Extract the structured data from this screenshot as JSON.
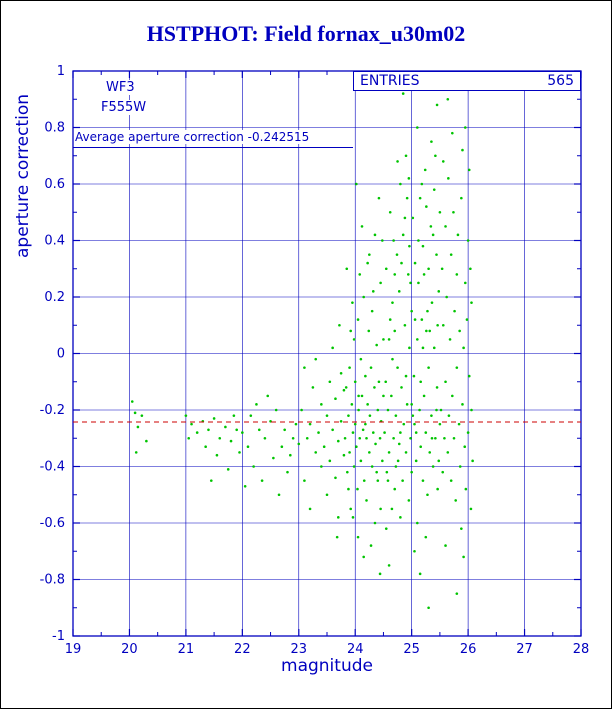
{
  "page": {
    "title": "HSTPHOT: Field fornax_u30m02"
  },
  "annotations": {
    "camera": "WF3",
    "filter": "F555W",
    "entries_label": "ENTRIES",
    "entries_value": "565",
    "avg_text": "Average aperture correction -0.242515"
  },
  "colors": {
    "axis_blue": "#0000bf",
    "point_green": "#00c400",
    "ref_red": "#cc0000"
  },
  "chart_data": {
    "type": "scatter",
    "title": "HSTPHOT: Field fornax_u30m02",
    "xlabel": "magnitude",
    "ylabel": "aperture correction",
    "xlim": [
      19,
      28
    ],
    "ylim": [
      -1,
      1
    ],
    "x_ticks": [
      19,
      20,
      21,
      22,
      23,
      24,
      25,
      26,
      27,
      28
    ],
    "y_ticks": [
      -1,
      -0.8,
      -0.6,
      -0.4,
      -0.2,
      0,
      0.2,
      0.4,
      0.6,
      0.8,
      1
    ],
    "grid": true,
    "legend": "none",
    "entries": 565,
    "reference_line": {
      "y": -0.242515,
      "label": "Average aperture correction -0.242515",
      "color": "#cc0000",
      "style": "dashed"
    },
    "series": [
      {
        "name": "aperture corrections",
        "color": "#00c400",
        "marker": "dot",
        "points": [
          [
            20.05,
            -0.17
          ],
          [
            20.1,
            -0.21
          ],
          [
            20.15,
            -0.26
          ],
          [
            20.22,
            -0.22
          ],
          [
            20.3,
            -0.31
          ],
          [
            20.12,
            -0.35
          ],
          [
            21.0,
            -0.22
          ],
          [
            21.05,
            -0.3
          ],
          [
            21.1,
            -0.25
          ],
          [
            21.2,
            -0.28
          ],
          [
            21.3,
            -0.24
          ],
          [
            21.35,
            -0.33
          ],
          [
            21.4,
            -0.27
          ],
          [
            21.5,
            -0.23
          ],
          [
            21.55,
            -0.36
          ],
          [
            21.6,
            -0.3
          ],
          [
            21.7,
            -0.26
          ],
          [
            21.75,
            -0.41
          ],
          [
            21.8,
            -0.31
          ],
          [
            21.9,
            -0.27
          ],
          [
            21.95,
            -0.35
          ],
          [
            21.45,
            -0.45
          ],
          [
            21.85,
            -0.22
          ],
          [
            22.0,
            -0.28
          ],
          [
            22.1,
            -0.33
          ],
          [
            22.15,
            -0.22
          ],
          [
            22.2,
            -0.4
          ],
          [
            22.3,
            -0.27
          ],
          [
            22.35,
            -0.45
          ],
          [
            22.4,
            -0.3
          ],
          [
            22.5,
            -0.24
          ],
          [
            22.55,
            -0.37
          ],
          [
            22.6,
            -0.2
          ],
          [
            22.7,
            -0.33
          ],
          [
            22.75,
            -0.27
          ],
          [
            22.8,
            -0.42
          ],
          [
            22.9,
            -0.3
          ],
          [
            22.95,
            -0.25
          ],
          [
            22.25,
            -0.18
          ],
          [
            22.65,
            -0.5
          ],
          [
            22.45,
            -0.15
          ],
          [
            22.85,
            -0.36
          ],
          [
            22.05,
            -0.47
          ],
          [
            23.0,
            -0.32
          ],
          [
            23.05,
            -0.2
          ],
          [
            23.1,
            -0.45
          ],
          [
            23.1,
            -0.05
          ],
          [
            23.15,
            -0.3
          ],
          [
            23.2,
            -0.25
          ],
          [
            23.2,
            -0.55
          ],
          [
            23.25,
            -0.12
          ],
          [
            23.3,
            -0.35
          ],
          [
            23.3,
            -0.02
          ],
          [
            23.35,
            -0.28
          ],
          [
            23.4,
            -0.4
          ],
          [
            23.4,
            -0.18
          ],
          [
            23.45,
            -0.33
          ],
          [
            23.5,
            -0.22
          ],
          [
            23.5,
            -0.5
          ],
          [
            23.55,
            -0.1
          ],
          [
            23.55,
            -0.38
          ],
          [
            23.6,
            -0.27
          ],
          [
            23.6,
            0.02
          ],
          [
            23.65,
            -0.44
          ],
          [
            23.65,
            -0.16
          ],
          [
            23.7,
            -0.31
          ],
          [
            23.7,
            -0.58
          ],
          [
            23.75,
            -0.24
          ],
          [
            23.75,
            -0.07
          ],
          [
            23.8,
            -0.36
          ],
          [
            23.8,
            -0.13
          ],
          [
            23.72,
            0.1
          ],
          [
            23.68,
            -0.65
          ],
          [
            23.82,
            -0.3
          ],
          [
            23.84,
            -0.12
          ],
          [
            23.86,
            -0.42
          ],
          [
            23.88,
            -0.22
          ],
          [
            23.9,
            -0.05
          ],
          [
            23.9,
            -0.35
          ],
          [
            23.92,
            -0.55
          ],
          [
            23.94,
            -0.18
          ],
          [
            23.96,
            -0.28
          ],
          [
            23.98,
            0.05
          ],
          [
            23.98,
            -0.4
          ],
          [
            24.0,
            -0.25
          ],
          [
            24.0,
            -0.1
          ],
          [
            24.02,
            -0.33
          ],
          [
            24.04,
            -0.48
          ],
          [
            24.05,
            0.12
          ],
          [
            24.06,
            -0.2
          ],
          [
            24.08,
            -0.3
          ],
          [
            24.1,
            -0.02
          ],
          [
            24.1,
            -0.38
          ],
          [
            24.12,
            -0.15
          ],
          [
            24.14,
            -0.27
          ],
          [
            24.15,
            0.2
          ],
          [
            24.16,
            -0.45
          ],
          [
            24.18,
            -0.08
          ],
          [
            24.2,
            -0.3
          ],
          [
            24.2,
            -0.52
          ],
          [
            24.22,
            -0.18
          ],
          [
            24.24,
            0.08
          ],
          [
            24.25,
            -0.35
          ],
          [
            24.26,
            -0.22
          ],
          [
            24.28,
            -0.05
          ],
          [
            24.3,
            -0.4
          ],
          [
            24.3,
            0.15
          ],
          [
            24.32,
            -0.28
          ],
          [
            24.34,
            -0.12
          ],
          [
            24.35,
            -0.6
          ],
          [
            24.36,
            -0.32
          ],
          [
            24.38,
            0.03
          ],
          [
            24.4,
            -0.2
          ],
          [
            24.4,
            -0.45
          ],
          [
            24.42,
            -0.1
          ],
          [
            24.44,
            -0.3
          ],
          [
            24.45,
            0.25
          ],
          [
            24.46,
            -0.24
          ],
          [
            24.48,
            -0.38
          ],
          [
            24.5,
            -0.15
          ],
          [
            24.5,
            0.05
          ],
          [
            23.85,
            0.3
          ],
          [
            23.95,
            0.18
          ],
          [
            24.05,
            -0.65
          ],
          [
            24.15,
            -0.72
          ],
          [
            24.25,
            0.35
          ],
          [
            24.35,
            0.42
          ],
          [
            24.45,
            -0.55
          ],
          [
            23.88,
            -0.48
          ],
          [
            24.08,
            0.28
          ],
          [
            24.28,
            -0.68
          ],
          [
            24.48,
            0.4
          ],
          [
            23.92,
            0.08
          ],
          [
            24.12,
            0.45
          ],
          [
            24.32,
            0.22
          ],
          [
            24.42,
            0.55
          ],
          [
            24.02,
            0.6
          ],
          [
            24.22,
            0.32
          ],
          [
            24.44,
            -0.78
          ],
          [
            23.96,
            -0.58
          ],
          [
            24.38,
            -0.42
          ],
          [
            24.18,
            -0.25
          ],
          [
            24.06,
            -0.15
          ],
          [
            24.52,
            -0.28
          ],
          [
            24.54,
            -0.1
          ],
          [
            24.55,
            0.3
          ],
          [
            24.56,
            -0.42
          ],
          [
            24.58,
            -0.2
          ],
          [
            24.6,
            0.05
          ],
          [
            24.6,
            -0.35
          ],
          [
            24.62,
            0.5
          ],
          [
            24.64,
            -0.15
          ],
          [
            24.65,
            -0.55
          ],
          [
            24.66,
            0.18
          ],
          [
            24.68,
            -0.3
          ],
          [
            24.7,
            0.08
          ],
          [
            24.7,
            -0.48
          ],
          [
            24.72,
            -0.22
          ],
          [
            24.74,
            0.35
          ],
          [
            24.75,
            -0.05
          ],
          [
            24.76,
            -0.38
          ],
          [
            24.78,
            0.22
          ],
          [
            24.8,
            -0.28
          ],
          [
            24.8,
            0.6
          ],
          [
            24.82,
            -0.12
          ],
          [
            24.84,
            -0.45
          ],
          [
            24.85,
            0.42
          ],
          [
            24.86,
            -0.25
          ],
          [
            24.88,
            0.1
          ],
          [
            24.9,
            -0.35
          ],
          [
            24.9,
            0.7
          ],
          [
            24.92,
            -0.18
          ],
          [
            24.94,
            0.28
          ],
          [
            24.95,
            -0.52
          ],
          [
            24.96,
            0.02
          ],
          [
            24.98,
            -0.3
          ],
          [
            25.0,
            0.15
          ],
          [
            25.0,
            -0.42
          ],
          [
            25.02,
            0.48
          ],
          [
            25.04,
            -0.08
          ],
          [
            25.05,
            -0.25
          ],
          [
            25.06,
            0.32
          ],
          [
            25.08,
            -0.38
          ],
          [
            25.1,
            0.05
          ],
          [
            25.1,
            -0.6
          ],
          [
            25.12,
            0.25
          ],
          [
            25.14,
            -0.2
          ],
          [
            25.15,
            0.55
          ],
          [
            25.16,
            -0.33
          ],
          [
            25.18,
            0.12
          ],
          [
            25.2,
            -0.45
          ],
          [
            25.2,
            0.38
          ],
          [
            25.22,
            -0.15
          ],
          [
            25.24,
            0.65
          ],
          [
            25.25,
            -0.28
          ],
          [
            25.26,
            0.08
          ],
          [
            25.28,
            -0.5
          ],
          [
            25.3,
            0.3
          ],
          [
            25.3,
            -0.05
          ],
          [
            25.32,
            -0.35
          ],
          [
            25.34,
            0.45
          ],
          [
            25.35,
            -0.22
          ],
          [
            25.36,
            0.18
          ],
          [
            25.38,
            -0.4
          ],
          [
            25.4,
            0.02
          ],
          [
            25.4,
            0.58
          ],
          [
            25.42,
            -0.3
          ],
          [
            25.44,
            0.35
          ],
          [
            25.45,
            -0.12
          ],
          [
            25.46,
            -0.48
          ],
          [
            25.48,
            0.22
          ],
          [
            25.5,
            -0.25
          ],
          [
            25.5,
            0.5
          ],
          [
            24.85,
            0.92
          ],
          [
            25.45,
            0.88
          ],
          [
            25.3,
            -0.9
          ],
          [
            24.6,
            -0.75
          ],
          [
            25.1,
            0.8
          ],
          [
            25.35,
            0.75
          ],
          [
            24.95,
            0.62
          ],
          [
            25.05,
            -0.7
          ],
          [
            25.25,
            -0.65
          ],
          [
            24.75,
            0.68
          ],
          [
            25.15,
            -0.78
          ],
          [
            24.55,
            -0.62
          ],
          [
            25.42,
            0.7
          ],
          [
            24.9,
            -0.08
          ],
          [
            25.0,
            -0.18
          ],
          [
            24.7,
            0.28
          ],
          [
            24.8,
            -0.58
          ],
          [
            25.2,
            0.02
          ],
          [
            25.38,
            0.42
          ],
          [
            24.66,
            -0.02
          ],
          [
            24.78,
            -0.32
          ],
          [
            24.88,
            0.48
          ],
          [
            24.98,
            0.25
          ],
          [
            25.08,
            -0.28
          ],
          [
            25.18,
            0.6
          ],
          [
            25.28,
            0.15
          ],
          [
            25.48,
            -0.38
          ],
          [
            24.62,
            0.12
          ],
          [
            24.72,
            -0.4
          ],
          [
            24.82,
            0.32
          ],
          [
            24.92,
            0.55
          ],
          [
            25.02,
            -0.22
          ],
          [
            25.12,
            0.4
          ],
          [
            25.22,
            0.28
          ],
          [
            25.32,
            0.08
          ],
          [
            25.44,
            -0.2
          ],
          [
            24.58,
            -0.45
          ],
          [
            24.68,
            0.4
          ],
          [
            24.96,
            0.38
          ],
          [
            25.06,
            0.12
          ],
          [
            25.16,
            -0.1
          ],
          [
            25.26,
            0.52
          ],
          [
            25.36,
            -0.3
          ],
          [
            25.46,
            0.1
          ],
          [
            25.52,
            -0.2
          ],
          [
            25.54,
            0.3
          ],
          [
            25.55,
            -0.42
          ],
          [
            25.56,
            0.1
          ],
          [
            25.58,
            -0.3
          ],
          [
            25.6,
            0.45
          ],
          [
            25.6,
            -0.1
          ],
          [
            25.62,
            0.2
          ],
          [
            25.64,
            -0.35
          ],
          [
            25.65,
            0.62
          ],
          [
            25.66,
            -0.22
          ],
          [
            25.68,
            0.05
          ],
          [
            25.7,
            -0.45
          ],
          [
            25.7,
            0.35
          ],
          [
            25.72,
            -0.15
          ],
          [
            25.74,
            0.5
          ],
          [
            25.75,
            -0.3
          ],
          [
            25.76,
            0.15
          ],
          [
            25.78,
            -0.52
          ],
          [
            25.8,
            0.28
          ],
          [
            25.8,
            -0.05
          ],
          [
            25.82,
            0.42
          ],
          [
            25.84,
            -0.25
          ],
          [
            25.85,
            0.08
          ],
          [
            25.86,
            -0.4
          ],
          [
            25.88,
            0.55
          ],
          [
            25.9,
            -0.18
          ],
          [
            25.9,
            0.72
          ],
          [
            25.92,
            0.02
          ],
          [
            25.94,
            -0.33
          ],
          [
            25.95,
            0.25
          ],
          [
            25.96,
            -0.48
          ],
          [
            25.98,
            0.12
          ],
          [
            26.0,
            -0.28
          ],
          [
            26.0,
            0.4
          ],
          [
            26.02,
            -0.08
          ],
          [
            26.04,
            0.3
          ],
          [
            26.05,
            -0.55
          ],
          [
            26.06,
            0.18
          ],
          [
            26.08,
            -0.38
          ],
          [
            25.95,
            0.8
          ],
          [
            25.8,
            -0.85
          ],
          [
            25.6,
            -0.68
          ],
          [
            25.88,
            -0.62
          ],
          [
            26.02,
            0.65
          ],
          [
            25.56,
            0.68
          ],
          [
            25.92,
            -0.72
          ],
          [
            26.06,
            -0.2
          ],
          [
            25.72,
            0.78
          ],
          [
            25.64,
            0.9
          ]
        ]
      }
    ]
  }
}
